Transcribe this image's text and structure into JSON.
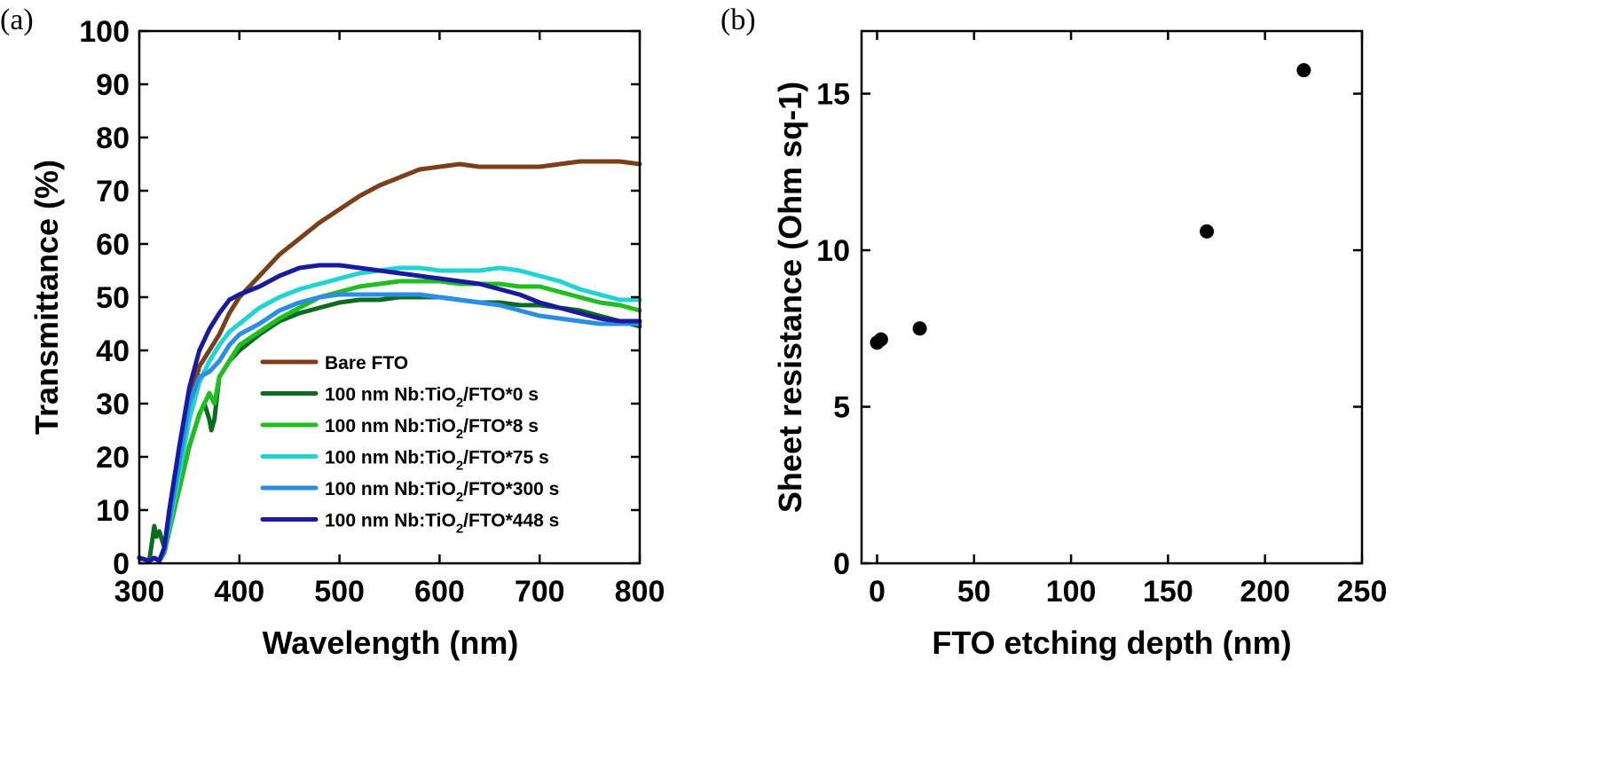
{
  "chart_data": [
    {
      "type": "line",
      "panel_label": "(a)",
      "title": "",
      "xlabel": "Wavelength (nm)",
      "ylabel": "Transmittance (%)",
      "xlim": [
        300,
        800
      ],
      "ylim": [
        0,
        100
      ],
      "xticks": [
        300,
        400,
        500,
        600,
        700,
        800
      ],
      "yticks": [
        0,
        10,
        20,
        30,
        40,
        50,
        60,
        70,
        80,
        90,
        100
      ],
      "grid": false,
      "legend_position": "bottom-center",
      "series": [
        {
          "name_prefix": "Bare FTO",
          "name_sub": "",
          "name_suffix": "",
          "color": "#7b3f1a",
          "x": [
            300,
            310,
            315,
            320,
            325,
            330,
            335,
            340,
            350,
            360,
            370,
            380,
            390,
            400,
            420,
            440,
            460,
            480,
            500,
            520,
            540,
            560,
            580,
            600,
            620,
            640,
            660,
            680,
            700,
            720,
            740,
            760,
            780,
            800
          ],
          "y": [
            1,
            0.5,
            1,
            0.5,
            2,
            6,
            12,
            20,
            30,
            37,
            40,
            43,
            47,
            50,
            54,
            58,
            61,
            64,
            66.5,
            69,
            71,
            72.5,
            74,
            74.5,
            75,
            74.5,
            74.5,
            74.5,
            74.5,
            75,
            75.5,
            75.5,
            75.5,
            75
          ]
        },
        {
          "name_prefix": "100 nm Nb:TiO",
          "name_sub": "2",
          "name_suffix": "/FTO*0 s",
          "color": "#0d6b1f",
          "x": [
            300,
            310,
            315,
            317,
            320,
            325,
            330,
            340,
            350,
            360,
            365,
            370,
            372,
            375,
            378,
            380,
            390,
            400,
            420,
            440,
            460,
            480,
            500,
            520,
            540,
            560,
            580,
            600,
            620,
            640,
            660,
            680,
            700,
            720,
            740,
            760,
            780,
            800
          ],
          "y": [
            1,
            0.5,
            7,
            5,
            6,
            3,
            7,
            14,
            22,
            28,
            30,
            27,
            25,
            27,
            32,
            35,
            38,
            40,
            43,
            45.5,
            47,
            48,
            49,
            49.5,
            49.5,
            50,
            50,
            50,
            49.5,
            49,
            49,
            48.5,
            48.5,
            48,
            47.5,
            46.5,
            45.5,
            44.5
          ]
        },
        {
          "name_prefix": "100 nm Nb:TiO",
          "name_sub": "2",
          "name_suffix": "/FTO*8 s",
          "color": "#1fbf1f",
          "x": [
            300,
            310,
            315,
            320,
            325,
            330,
            340,
            350,
            360,
            370,
            375,
            380,
            390,
            400,
            420,
            440,
            460,
            480,
            500,
            520,
            540,
            560,
            580,
            600,
            620,
            640,
            660,
            680,
            700,
            720,
            740,
            760,
            780,
            800
          ],
          "y": [
            1,
            0.5,
            1,
            0.5,
            2,
            6,
            14,
            22,
            28,
            32,
            30,
            35,
            38,
            41,
            43.5,
            46,
            48,
            50,
            51,
            52,
            52.5,
            53,
            53,
            53,
            52.5,
            52.5,
            52.5,
            52,
            52,
            51,
            50,
            49,
            48.5,
            47.5
          ]
        },
        {
          "name_prefix": "100 nm Nb:TiO",
          "name_sub": "2",
          "name_suffix": "/FTO*75 s",
          "color": "#22d3d3",
          "x": [
            300,
            310,
            315,
            320,
            325,
            330,
            340,
            350,
            360,
            370,
            380,
            390,
            400,
            420,
            440,
            460,
            480,
            500,
            520,
            540,
            560,
            580,
            600,
            620,
            640,
            660,
            680,
            700,
            720,
            740,
            760,
            780,
            800
          ],
          "y": [
            1,
            0.5,
            1,
            0.5,
            2,
            7,
            17,
            27,
            34,
            38,
            41,
            43.5,
            45,
            48,
            50,
            51.5,
            52.5,
            53.5,
            54.5,
            55,
            55.5,
            55.5,
            55,
            55,
            55,
            55.5,
            55,
            54,
            53,
            51.5,
            50.5,
            49.5,
            49.5
          ]
        },
        {
          "name_prefix": "100 nm Nb:TiO",
          "name_sub": "2",
          "name_suffix": "/FTO*300 s",
          "color": "#2a8ee6",
          "x": [
            300,
            310,
            315,
            320,
            325,
            330,
            340,
            350,
            360,
            370,
            380,
            390,
            400,
            420,
            440,
            460,
            480,
            500,
            520,
            540,
            560,
            580,
            600,
            620,
            640,
            660,
            680,
            700,
            720,
            740,
            760,
            780,
            800
          ],
          "y": [
            1,
            0.5,
            1,
            0.5,
            2,
            8,
            19,
            30,
            35,
            36,
            38,
            41,
            43,
            45,
            47.5,
            49,
            50,
            50.5,
            50.5,
            50.5,
            50.5,
            50.5,
            50,
            49.5,
            49,
            48.5,
            47.5,
            46.5,
            46,
            45.5,
            45,
            45,
            45
          ]
        },
        {
          "name_prefix": "100 nm Nb:TiO",
          "name_sub": "2",
          "name_suffix": "/FTO*448 s",
          "color": "#1a1aa0",
          "x": [
            300,
            310,
            315,
            320,
            325,
            330,
            340,
            350,
            360,
            370,
            380,
            390,
            400,
            420,
            440,
            460,
            480,
            500,
            520,
            540,
            560,
            580,
            600,
            620,
            640,
            660,
            680,
            700,
            720,
            740,
            760,
            780,
            800
          ],
          "y": [
            1,
            0.5,
            1,
            0.5,
            3,
            10,
            22,
            33,
            40,
            44,
            47,
            49.5,
            50.5,
            52,
            54,
            55.5,
            56,
            56,
            55.5,
            55,
            54.5,
            54,
            53.5,
            53,
            52.5,
            51.5,
            50.5,
            49,
            48,
            47,
            46,
            45.5,
            45.5
          ]
        }
      ]
    },
    {
      "type": "scatter",
      "panel_label": "(b)",
      "title": "",
      "xlabel": "FTO etching depth (nm)",
      "ylabel": "Sheet resistance (Ohm sq-1)",
      "xlim": [
        -8,
        250
      ],
      "ylim": [
        0,
        17
      ],
      "xticks": [
        0,
        50,
        100,
        150,
        200,
        250
      ],
      "yticks": [
        0,
        5,
        10,
        15
      ],
      "grid": false,
      "series": [
        {
          "name": "",
          "color": "#000000",
          "x": [
            0,
            2,
            22,
            170,
            220
          ],
          "y": [
            7.05,
            7.15,
            7.5,
            10.6,
            15.75
          ]
        }
      ]
    }
  ]
}
